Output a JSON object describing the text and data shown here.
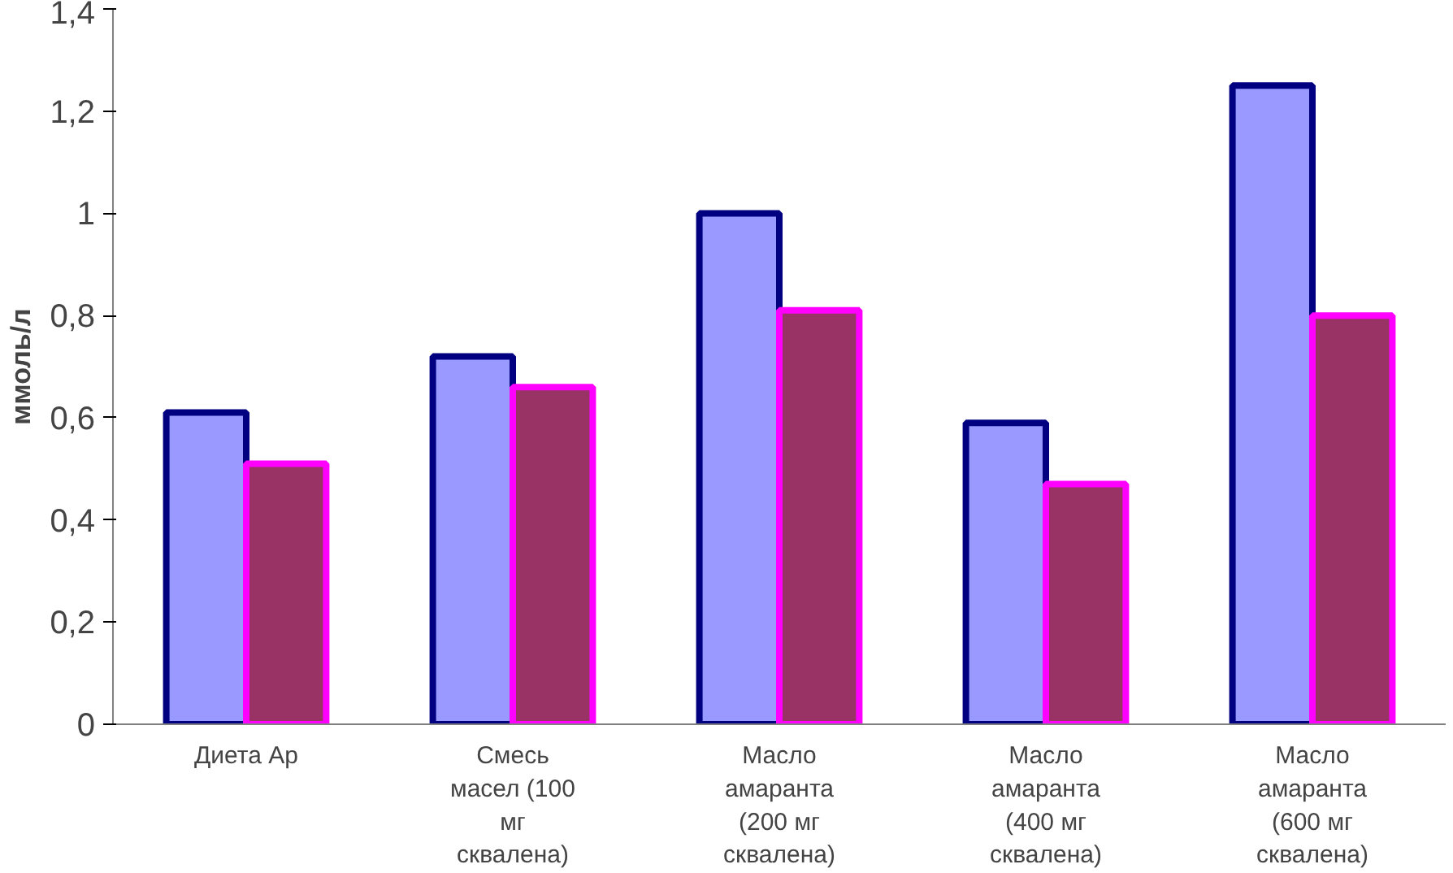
{
  "chart_data": {
    "type": "bar",
    "ylabel": "ммоль/л",
    "categories": [
      "Диета Ар",
      "Смесь масел (100 мг сквалена)",
      "Масло амаранта (200 мг сквалена)",
      "Масло амаранта (400 мг сквалена)",
      "Масло амаранта (600 мг сквалена)"
    ],
    "series": [
      {
        "color": "#9999ff",
        "values": [
          0.61,
          0.72,
          1.0,
          0.59,
          1.25
        ]
      },
      {
        "color": "#993366",
        "values": [
          0.51,
          0.66,
          0.81,
          0.47,
          0.8
        ]
      }
    ],
    "ylim": [
      0,
      1.4
    ],
    "yticks": [
      0,
      {
        "value": 0.2,
        "label": "0,2"
      },
      {
        "value": 0.4,
        "label": "0,4"
      },
      {
        "value": 0.6,
        "label": "0,6"
      },
      {
        "value": 0.8,
        "label": "0,8"
      },
      1,
      {
        "value": 1.2,
        "label": "1,2"
      },
      {
        "value": 1.4,
        "label": "1,4"
      }
    ],
    "grid": false
  }
}
